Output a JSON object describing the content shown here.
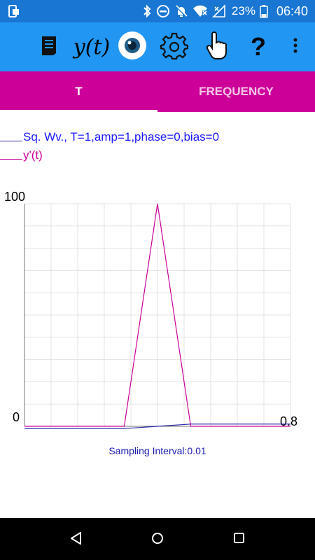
{
  "status_bar": {
    "battery": "23%",
    "time": "06:40"
  },
  "toolbar": {
    "buttons": [
      "notes-icon",
      "y-of-t",
      "eye-icon",
      "gear-icon",
      "pointer-hand-icon",
      "help-icon",
      "overflow-menu-icon"
    ],
    "yt_label": "y(t)",
    "help_label": "?"
  },
  "tabs": [
    {
      "label": "T",
      "selected": true
    },
    {
      "label": "FREQUENCY",
      "selected": false
    }
  ],
  "legend": [
    {
      "label": "Sq. Wv., T=1,amp=1,phase=0,bias=0",
      "color": "#2a2aa8"
    },
    {
      "label": "y'(t)",
      "color": "#cc0099"
    }
  ],
  "chart_data": {
    "type": "line",
    "xlabel_right": "0.8",
    "y_top_label": "100",
    "y_bottom_label": "0",
    "xlim": [
      0,
      0.8
    ],
    "ylim": [
      0,
      100
    ],
    "grid": true,
    "series": [
      {
        "name": "Sq. Wv., T=1,amp=1,phase=0,bias=0",
        "color": "#2a2aa8",
        "x": [
          0,
          0.1,
          0.2,
          0.3,
          0.4,
          0.5,
          0.6,
          0.7,
          0.8
        ],
        "y": [
          -1,
          -1,
          -1,
          -1,
          0,
          1,
          1,
          1,
          1
        ]
      },
      {
        "name": "y'(t)",
        "color": "#cc0099",
        "x": [
          0,
          0.1,
          0.2,
          0.3,
          0.4,
          0.5,
          0.6,
          0.7,
          0.8
        ],
        "y": [
          0,
          0,
          0,
          0,
          100,
          0,
          0,
          0,
          0
        ]
      }
    ]
  },
  "footer": {
    "sampling_interval": "Sampling Interval:0.01"
  }
}
